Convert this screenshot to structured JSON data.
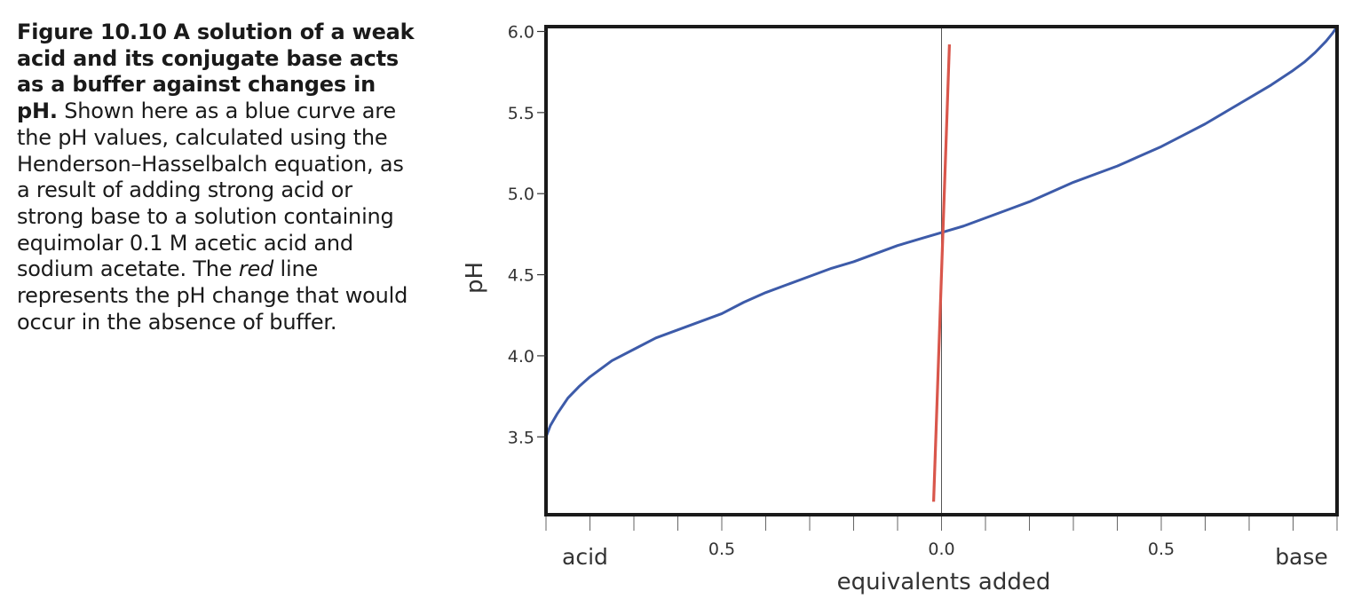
{
  "caption": {
    "label": "Figure 10.10",
    "bold_text": "A solution of a weak acid and its conjugate base acts as a buffer against changes in pH.",
    "text_before_italic": "Shown here as a blue curve are the pH values, calculated using the Henderson–Hasselbalch equation, as a result of adding strong acid or strong base to a solution containing equimolar 0.1 M acetic acid and sodium acetate. The",
    "italic_word": "red",
    "text_after_italic": "line represents the pH change that would occur in the absence of buffer."
  },
  "chart_data": {
    "type": "line",
    "title": "",
    "xlabel": "equivalents added",
    "ylabel": "pH",
    "xlim": [
      -0.9,
      0.9
    ],
    "ylim": [
      3.02,
      6.03
    ],
    "yticks": [
      3.5,
      4.0,
      4.5,
      5.0,
      5.5,
      6.0
    ],
    "ytick_labels": [
      "3.5",
      "4.0",
      "4.5",
      "5.0",
      "5.5",
      "6.0"
    ],
    "xtick_labels": [
      {
        "x": -0.5,
        "label": "0.5"
      },
      {
        "x": 0.0,
        "label": "0.0"
      },
      {
        "x": 0.5,
        "label": "0.5"
      }
    ],
    "x_end_labels": {
      "left": "acid",
      "right": "base"
    },
    "grid": false,
    "zero_line": true,
    "series": [
      {
        "color": "#3d5ba9",
        "x": [
          -0.9,
          -0.89,
          -0.875,
          -0.85,
          -0.825,
          -0.8,
          -0.75,
          -0.7,
          -0.65,
          -0.6,
          -0.55,
          -0.5,
          -0.45,
          -0.4,
          -0.35,
          -0.3,
          -0.25,
          -0.2,
          -0.15,
          -0.1,
          -0.05,
          0.0,
          0.05,
          0.1,
          0.15,
          0.2,
          0.25,
          0.3,
          0.35,
          0.4,
          0.45,
          0.5,
          0.55,
          0.6,
          0.65,
          0.7,
          0.75,
          0.8,
          0.825,
          0.85,
          0.875,
          0.89,
          0.9
        ],
        "values": [
          3.5,
          3.57,
          3.64,
          3.74,
          3.81,
          3.87,
          3.97,
          4.04,
          4.11,
          4.16,
          4.21,
          4.26,
          4.33,
          4.39,
          4.44,
          4.49,
          4.54,
          4.58,
          4.63,
          4.68,
          4.72,
          4.76,
          4.8,
          4.85,
          4.9,
          4.95,
          5.01,
          5.07,
          5.12,
          5.17,
          5.23,
          5.29,
          5.36,
          5.43,
          5.51,
          5.59,
          5.67,
          5.76,
          5.81,
          5.87,
          5.94,
          5.99,
          6.03
        ]
      },
      {
        "color": "#d9564b",
        "x": [
          -0.018,
          0.018
        ],
        "values": [
          3.1,
          5.92
        ]
      }
    ]
  }
}
